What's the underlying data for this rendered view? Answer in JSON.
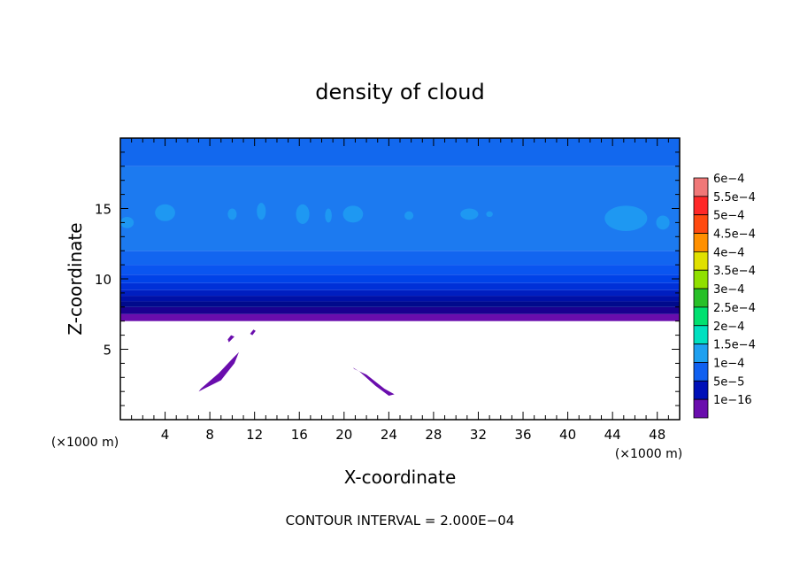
{
  "chart_data": {
    "type": "heatmap",
    "title": "density of cloud",
    "xlabel": "X-coordinate",
    "ylabel": "Z-coordinate",
    "x_unit_left": "(×1000 m)",
    "x_unit_right": "(×1000 m)",
    "xlim": [
      0,
      50
    ],
    "ylim": [
      0,
      20
    ],
    "x_ticks": [
      4,
      8,
      12,
      16,
      20,
      24,
      28,
      32,
      36,
      40,
      44,
      48
    ],
    "x_tick_labels": [
      "4",
      "8",
      "12",
      "16",
      "20",
      "24",
      "28",
      "32",
      "36",
      "40",
      "44",
      "48"
    ],
    "y_ticks": [
      5,
      10,
      15
    ],
    "y_tick_labels": [
      "5",
      "10",
      "15"
    ],
    "cloud_base_z": 7.0,
    "bands": [
      {
        "z0": 7.0,
        "z1": 7.5,
        "color": "#6a0dad"
      },
      {
        "z0": 7.5,
        "z1": 8.0,
        "color": "#1a0090"
      },
      {
        "z0": 8.0,
        "z1": 8.4,
        "color": "#000a8c"
      },
      {
        "z0": 8.4,
        "z1": 8.8,
        "color": "#0010a6"
      },
      {
        "z0": 8.8,
        "z1": 9.2,
        "color": "#001ec0"
      },
      {
        "z0": 9.2,
        "z1": 9.7,
        "color": "#0030d8"
      },
      {
        "z0": 9.7,
        "z1": 10.3,
        "color": "#0042e8"
      },
      {
        "z0": 10.3,
        "z1": 11.0,
        "color": "#0a55f0"
      },
      {
        "z0": 11.0,
        "z1": 12.0,
        "color": "#1265f0"
      },
      {
        "z0": 12.0,
        "z1": 18.0,
        "color": "#1c7af0"
      },
      {
        "z0": 18.0,
        "z1": 20.0,
        "color": "#1268ee"
      }
    ],
    "light_patches": [
      {
        "x": 4.0,
        "z": 14.7,
        "rx": 0.9,
        "rz": 0.6
      },
      {
        "x": 10.0,
        "z": 14.6,
        "rx": 0.4,
        "rz": 0.4
      },
      {
        "x": 12.6,
        "z": 14.8,
        "rx": 0.4,
        "rz": 0.6
      },
      {
        "x": 16.3,
        "z": 14.6,
        "rx": 0.6,
        "rz": 0.7
      },
      {
        "x": 18.6,
        "z": 14.5,
        "rx": 0.3,
        "rz": 0.5
      },
      {
        "x": 20.8,
        "z": 14.6,
        "rx": 0.9,
        "rz": 0.6
      },
      {
        "x": 25.8,
        "z": 14.5,
        "rx": 0.4,
        "rz": 0.3
      },
      {
        "x": 31.2,
        "z": 14.6,
        "rx": 0.8,
        "rz": 0.4
      },
      {
        "x": 33.0,
        "z": 14.6,
        "rx": 0.3,
        "rz": 0.2
      },
      {
        "x": 45.2,
        "z": 14.3,
        "rx": 1.9,
        "rz": 0.9
      },
      {
        "x": 48.5,
        "z": 14.0,
        "rx": 0.6,
        "rz": 0.5
      },
      {
        "x": 0.6,
        "z": 14.0,
        "rx": 0.6,
        "rz": 0.4
      }
    ],
    "low_cloud": [
      {
        "points": [
          [
            7.0,
            2.0
          ],
          [
            7.5,
            2.2
          ],
          [
            9.0,
            2.8
          ],
          [
            10.2,
            4.0
          ],
          [
            10.6,
            4.8
          ],
          [
            10.1,
            4.4
          ],
          [
            8.8,
            3.3
          ],
          [
            7.2,
            2.2
          ]
        ]
      },
      {
        "points": [
          [
            20.9,
            3.6
          ],
          [
            22.0,
            3.2
          ],
          [
            23.6,
            2.2
          ],
          [
            24.5,
            1.8
          ],
          [
            24.0,
            1.7
          ],
          [
            22.8,
            2.4
          ],
          [
            21.4,
            3.4
          ],
          [
            20.8,
            3.7
          ]
        ]
      },
      {
        "points": [
          [
            9.7,
            5.5
          ],
          [
            10.2,
            5.9
          ],
          [
            9.9,
            6.0
          ],
          [
            9.6,
            5.7
          ]
        ]
      },
      {
        "points": [
          [
            11.8,
            6.0
          ],
          [
            12.1,
            6.3
          ],
          [
            11.9,
            6.4
          ],
          [
            11.6,
            6.1
          ]
        ]
      }
    ],
    "legend": {
      "placement": "right",
      "entries": [
        {
          "label": "6e−4",
          "color": "#f07878"
        },
        {
          "label": "5.5e−4",
          "color": "#ff2828"
        },
        {
          "label": "5e−4",
          "color": "#ff4a10"
        },
        {
          "label": "4.5e−4",
          "color": "#ff9000"
        },
        {
          "label": "4e−4",
          "color": "#e0e000"
        },
        {
          "label": "3.5e−4",
          "color": "#90e000"
        },
        {
          "label": "3e−4",
          "color": "#28c028"
        },
        {
          "label": "2.5e−4",
          "color": "#00e070"
        },
        {
          "label": "2e−4",
          "color": "#00e0c0"
        },
        {
          "label": "1.5e−4",
          "color": "#1ea0f0"
        },
        {
          "label": "1e−4",
          "color": "#1060f0"
        },
        {
          "label": "5e−5",
          "color": "#0010b8"
        },
        {
          "label": "1e−16",
          "color": "#6a0dad"
        }
      ]
    },
    "footer": "CONTOUR INTERVAL = 2.000E−04"
  }
}
